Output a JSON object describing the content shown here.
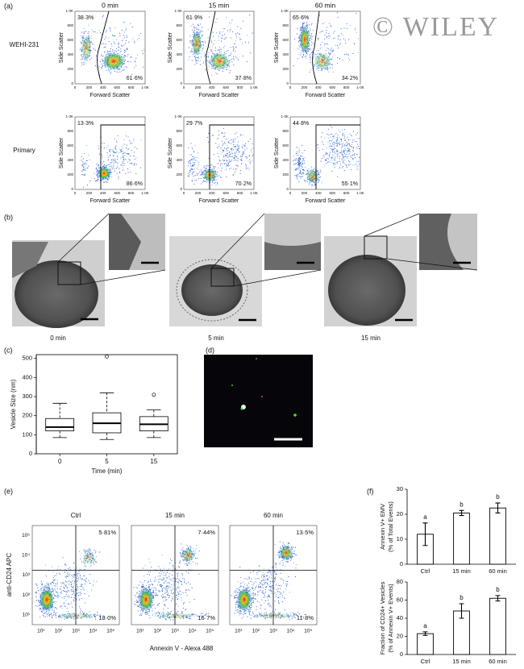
{
  "watermark": "© WILEY",
  "panel_labels": [
    "(a)",
    "(b)",
    "(c)",
    "(d)",
    "(e)",
    "(f)"
  ],
  "panel_a": {
    "columns": [
      "0 min",
      "15 min",
      "60 min"
    ],
    "rows": [
      "WEHI-231",
      "Primary"
    ],
    "y_label": "Side Scatter",
    "x_label": "Forward Scatter",
    "ticks": [
      "0",
      "200",
      "400",
      "600",
      "800",
      "1·0K"
    ],
    "gates": [
      [
        [
          "38·3%",
          "61·6%"
        ],
        [
          "61·9%",
          "37·8%"
        ],
        [
          "65·6%",
          "34·2%"
        ]
      ],
      [
        [
          "13·3%",
          "86·6%"
        ],
        [
          "29·7%",
          "70·2%"
        ],
        [
          "44·8%",
          "55·1%"
        ]
      ]
    ]
  },
  "panel_b": {
    "labels": [
      "0 min",
      "5 min",
      "15 min"
    ]
  },
  "panel_e": {
    "columns": [
      "Ctrl",
      "15 min",
      "60 min"
    ],
    "y_label": "anti-CD24 APC",
    "x_label": "Annexin V - Alexa 488",
    "ticks": [
      "10¹",
      "10²",
      "10³",
      "10⁴",
      "10⁵"
    ],
    "quadrants": [
      [
        "5·81%",
        "13·0%"
      ],
      [
        "7·44%",
        "16·7%"
      ],
      [
        "13·5%",
        "11·8%"
      ]
    ]
  },
  "chart_data": [
    {
      "type": "box",
      "x_label": "Time (min)",
      "y_label": "Vesicle Size (nm)",
      "categories": [
        "0",
        "5",
        "15"
      ],
      "boxes": [
        {
          "min": 85,
          "q1": 120,
          "median": 140,
          "q3": 185,
          "max": 265
        },
        {
          "min": 75,
          "q1": 110,
          "median": 160,
          "q3": 215,
          "max": 320,
          "outliers": [
            510
          ]
        },
        {
          "min": 85,
          "q1": 120,
          "median": 155,
          "q3": 195,
          "max": 230,
          "outliers": [
            310
          ]
        }
      ],
      "ylim": [
        0,
        520
      ],
      "yticks": [
        0,
        100,
        200,
        300,
        400,
        500
      ]
    },
    {
      "type": "bar",
      "y_label": [
        "Annexin V+ EMV",
        "(% of Total Events)"
      ],
      "categories": [
        "Ctrl",
        "15 min",
        "60 min"
      ],
      "values": [
        12,
        20.5,
        22.5
      ],
      "errors": [
        4.5,
        1,
        2
      ],
      "annotations": [
        "a",
        "b",
        "b"
      ],
      "ylim": [
        0,
        30
      ],
      "yticks": [
        0,
        10,
        20,
        30
      ],
      "color": "#ffffff"
    },
    {
      "type": "bar",
      "y_label": [
        "Fraction of CD24+ Vesicles",
        "(% of Annexin V+ Events)"
      ],
      "categories": [
        "Ctrl",
        "15 min",
        "60 min"
      ],
      "values": [
        23,
        48,
        62
      ],
      "errors": [
        2,
        8,
        3
      ],
      "annotations": [
        "a",
        "b",
        "b"
      ],
      "ylim": [
        0,
        80
      ],
      "yticks": [
        0,
        20,
        40,
        60,
        80
      ],
      "color": "#ffffff"
    }
  ]
}
